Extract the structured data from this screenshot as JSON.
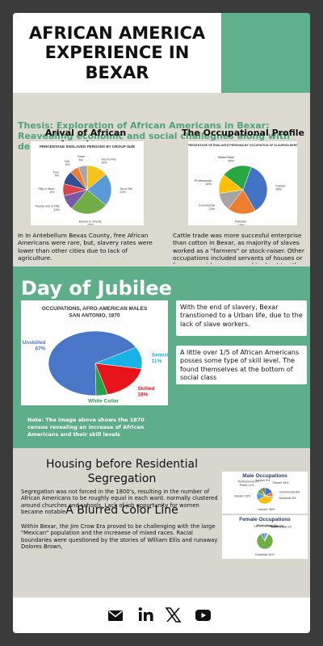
{
  "header": {
    "title": "AFRICAN AMERICA EXPERIENCE IN BEXAR"
  },
  "thesis": "Thesis: Exploration of African Americans in Bexar: Reavealing economic and social challegnes along with demographic shifts",
  "arrival": {
    "heading": "Arival of African Americans",
    "chart": {
      "type": "pie",
      "title": "PERCENTAGE ENSLAVED PERSONS BY GROUP SIZE",
      "categories": [
        "One to Five",
        "Six to Ten",
        "Eleven to Twenty",
        "Twenty-one to Fifty",
        "Fifty or More",
        "Four",
        "Two",
        "Three"
      ],
      "values": [
        14,
        22,
        25,
        10,
        8,
        9,
        6,
        6
      ],
      "value_labels": [
        "14%",
        "22%",
        "25%",
        "10%",
        "8%",
        "9%",
        "6%",
        "6%"
      ],
      "colors": [
        "#f7c21b",
        "#5b9bd5",
        "#70ad47",
        "#7a5aa6",
        "#d9434e",
        "#2f4f8f",
        "#ed7d31",
        "#a5a5a5"
      ]
    },
    "text": "In In Antebellum Bexas County, free African Americans were rare, but, slavery rates were lower than other cities due to lack of agriculture."
  },
  "occupational": {
    "heading": "The Occupational Profile",
    "chart": {
      "type": "pie",
      "title": "PERCENTAGE OF ENSLAVED PERSONS BY OCCUPATION OF SLAVEHOLDERS",
      "categories": [
        "Farmer",
        "Rancher",
        "Commercial",
        "Professional",
        "Waiter/Maid"
      ],
      "values": [
        36,
        19,
        12,
        13,
        20
      ],
      "value_labels": [
        "36%",
        "19%",
        "12%",
        "13%",
        "20%"
      ],
      "colors": [
        "#4472c4",
        "#ed7d31",
        "#a5a5a5",
        "#ffc000",
        "#28a745"
      ]
    },
    "text": "Cattle trade was more succesful enterprise than cotton in Bexar, as majority of slaves worked as a \"farmers\" or stock-raiser. Other occupations included servants of houses or farms, or widows, or were hired out to other people."
  },
  "jubilee": {
    "heading": "Day of Jubilee",
    "chart": {
      "type": "pie",
      "title": [
        "OCCUPATIONS, AFRO-AMERICAN MALES",
        "SAN ANTONIO, 1870"
      ],
      "categories": [
        "Unskilled",
        "Semiskilled",
        "Skilled",
        "White Collar"
      ],
      "values": [
        67,
        11,
        18,
        4
      ],
      "value_labels": [
        "67%",
        "11%",
        "18%",
        "4%"
      ],
      "colors": [
        "#4a76c8",
        "#19b2e8",
        "#e8141c",
        "#28a04a"
      ]
    },
    "note": "Note: The image above shows the 1870 census revealing an increase of African Americans and their skill levels",
    "boxes": [
      "With the end of slavery, Bexar transtioned to a Urban life, due to the lack of slave workers.",
      "A little over 1/5 of African Americans posses some type of skill level. The found themselves at the bottom of social class"
    ]
  },
  "housing": {
    "heading": "Housing before Residential Segregation",
    "text": "Segregation was not forced in the 1800's, resulting in the number of African Americans to be roughly equal in each ward. normally clustered around churches and schools. Lack of job oppurtunity for women became notable."
  },
  "blurred": {
    "heading": "A Blurred Color Line",
    "text": "Within Bexar, the Jim Crow Era proved to be challenging with the large \"Mexican\" population and the increaese of mixed races. Racial boundaries were questioned by the stories of William Ellis and runaway Dolores Brown,"
  },
  "male": {
    "type": "pie",
    "title": "Male Occupations",
    "categories": [
      "Farmer",
      "Commercial",
      "Domestic",
      "Laborer",
      "Worker",
      "Porter",
      "Professional",
      "Service"
    ],
    "values": [
      18,
      8,
      5,
      35,
      15,
      11,
      3,
      5
    ],
    "value_labels": [
      "18%",
      "8%",
      "5%",
      "35%",
      "15%",
      "11%",
      "3%",
      "5%"
    ],
    "colors": [
      "#4472c4",
      "#ed7d31",
      "#a5a5a5",
      "#ffc000",
      "#5b9bd5",
      "#70ad47",
      "#264478",
      "#9e480e"
    ]
  },
  "female": {
    "type": "pie",
    "title": "Female Occupations",
    "categories": [
      "Professional",
      "Service",
      "Skilled",
      "Commercial",
      "Domestic",
      "Laborer"
    ],
    "values": [
      3,
      0,
      1,
      1,
      54,
      5
    ],
    "value_labels": [
      "3%",
      "0%",
      "1%",
      "1%",
      "54%",
      "5%"
    ],
    "colors": [
      "#4472c4",
      "#ed7d31",
      "#a5a5a5",
      "#ffc000",
      "#70ad47",
      "#5b9bd5"
    ]
  }
}
